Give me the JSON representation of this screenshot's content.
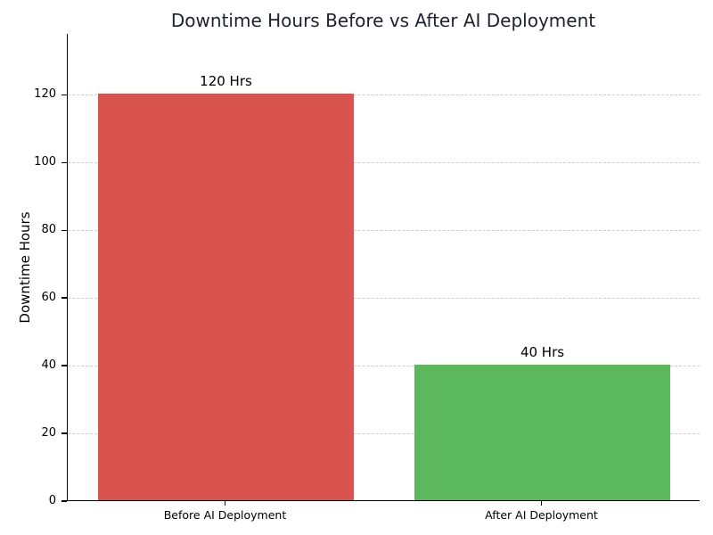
{
  "chart_data": {
    "type": "bar",
    "title": "Downtime Hours Before vs After AI Deployment",
    "xlabel": "",
    "ylabel": "Downtime Hours",
    "categories": [
      "Before AI Deployment",
      "After AI Deployment"
    ],
    "values": [
      120,
      40
    ],
    "bar_labels": [
      "120 Hrs",
      "40 Hrs"
    ],
    "bar_colors": [
      "#d9534f",
      "#5cb85c"
    ],
    "ylim": [
      0,
      138
    ],
    "yticks": [
      0,
      20,
      40,
      60,
      80,
      100,
      120
    ],
    "grid": "horizontal-dashed",
    "grid_color": "#cccccc",
    "spine_color": "#000000",
    "title_color": "#1f2030",
    "legend": "none",
    "background_color": "#ffffff"
  }
}
